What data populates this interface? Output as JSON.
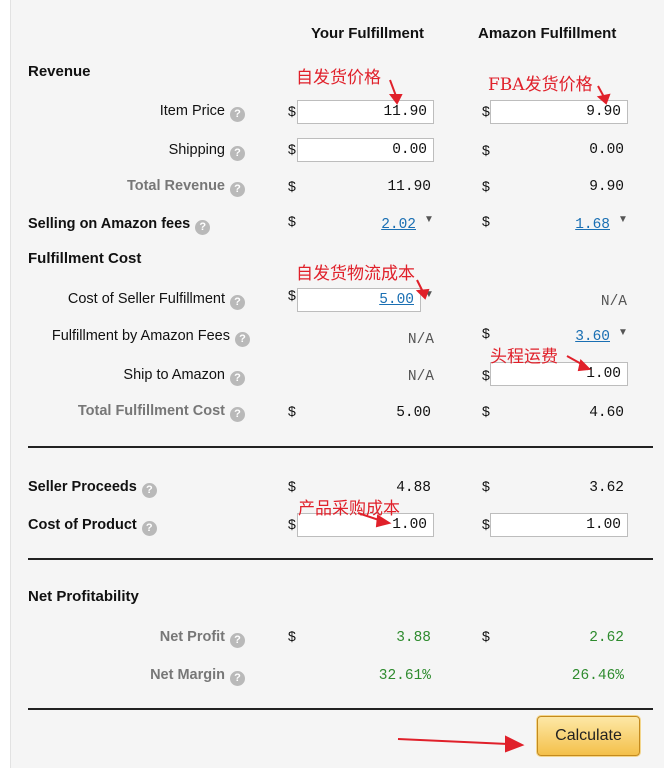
{
  "columns": {
    "your": "Your Fulfillment",
    "amazon": "Amazon Fulfillment"
  },
  "sections": {
    "revenue": "Revenue",
    "fulfillment_cost": "Fulfillment Cost",
    "net_profitability": "Net Profitability"
  },
  "currency": "$",
  "help_glyph": "?",
  "caret_glyph": "▼",
  "rows": {
    "item_price": {
      "label": "Item Price",
      "your": "11.90",
      "amazon": "9.90"
    },
    "shipping": {
      "label": "Shipping",
      "your": "0.00",
      "amazon": "0.00"
    },
    "total_revenue": {
      "label": "Total Revenue",
      "your": "11.90",
      "amazon": "9.90"
    },
    "selling_fees": {
      "label": "Selling on Amazon fees",
      "your": "2.02",
      "amazon": "1.68"
    },
    "cost_seller_fulfillment": {
      "label": "Cost of Seller Fulfillment",
      "your": "5.00",
      "amazon": "N/A"
    },
    "fba_fees": {
      "label": "Fulfillment by Amazon Fees",
      "your": "N/A",
      "amazon": "3.60"
    },
    "ship_to_amazon": {
      "label": "Ship to Amazon",
      "your": "N/A",
      "amazon": "1.00"
    },
    "total_fulfillment_cost": {
      "label": "Total Fulfillment Cost",
      "your": "5.00",
      "amazon": "4.60"
    },
    "seller_proceeds": {
      "label": "Seller Proceeds",
      "your": "4.88",
      "amazon": "3.62"
    },
    "cost_of_product": {
      "label": "Cost of Product",
      "your": "1.00",
      "amazon": "1.00"
    },
    "net_profit": {
      "label": "Net Profit",
      "your": "3.88",
      "amazon": "2.62"
    },
    "net_margin": {
      "label": "Net Margin",
      "your": "32.61%",
      "amazon": "26.46%"
    }
  },
  "annotations": {
    "self_ship_price": "自发货价格",
    "fba_ship_price": "FBA发货价格",
    "self_logistics_cost": "自发货物流成本",
    "first_leg_freight": "头程运费",
    "product_purchase_cost": "产品采购成本"
  },
  "calculate_label": "Calculate",
  "colors": {
    "annotation": "#e0202a",
    "profit_green": "#2e8b2e",
    "link_blue": "#1a6fb3",
    "button_gold": "#f4c04a"
  }
}
